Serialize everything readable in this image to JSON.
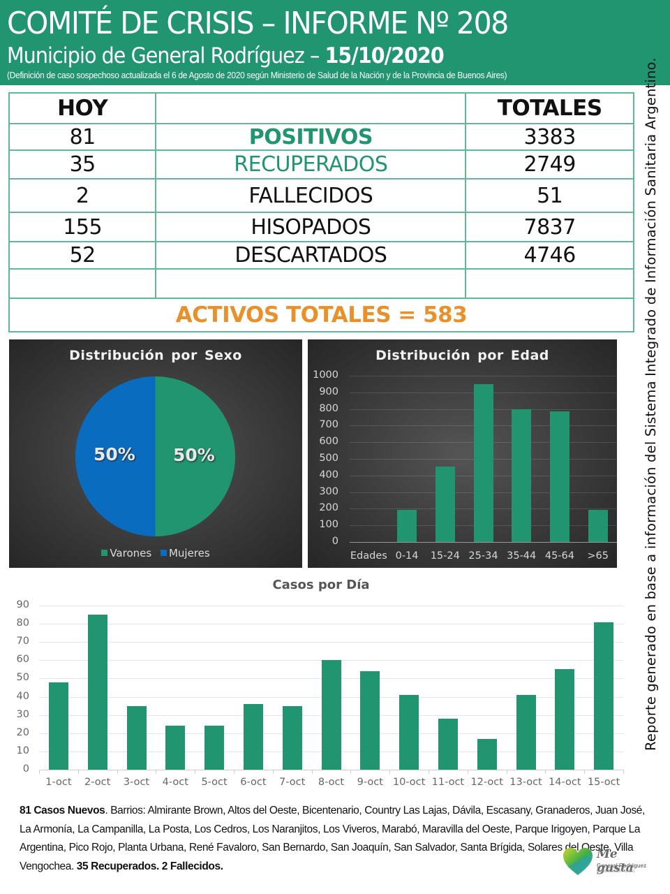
{
  "header": {
    "title": "COMITÉ DE CRISIS – INFORME Nº 208",
    "subtitle_prefix": "Municipio de General Rodríguez – ",
    "subtitle_date": "15/10/2020",
    "note": "(Definición de caso sospechoso actualizada el 6 de Agosto de 2020 según Ministerio de Salud de la Nación y de la Provincia de Buenos Aires)",
    "background_color": "#219470"
  },
  "summary": {
    "col_today": "HOY",
    "col_label": "",
    "col_total": "TOTALES",
    "rows": [
      {
        "today": "81",
        "label": "POSITIVOS",
        "total": "3383"
      },
      {
        "today": "35",
        "label": "RECUPERADOS",
        "total": "2749"
      },
      {
        "today": "2",
        "label": "FALLECIDOS",
        "total": "51"
      },
      {
        "today": "155",
        "label": "HISOPADOS",
        "total": "7837"
      },
      {
        "today": "52",
        "label": "DESCARTADOS",
        "total": "4746"
      },
      {
        "today": "",
        "label": "",
        "total": ""
      }
    ],
    "activos": "ACTIVOS TOTALES = 583",
    "activos_color": "#e8902a"
  },
  "side_note": "Reporte generado en base a información del Sistema Integrado de Información Sanitaria Argentino.",
  "chart_data": [
    {
      "type": "pie",
      "title": "Distribución por Sexo",
      "categories": [
        "Varones",
        "Mujeres"
      ],
      "values": [
        50,
        50
      ],
      "labels": [
        "50%",
        "50%"
      ],
      "colors": [
        "#219470",
        "#0a6cbf"
      ],
      "legend_position": "bottom"
    },
    {
      "type": "bar",
      "title": "Distribución por Edad",
      "categories": [
        "Edades",
        "0-14",
        "15-24",
        "25-34",
        "35-44",
        "45-64",
        ">65"
      ],
      "values": [
        0,
        195,
        455,
        950,
        800,
        785,
        195
      ],
      "yticks": [
        "0",
        "100",
        "200",
        "300",
        "400",
        "500",
        "600",
        "700",
        "800",
        "900",
        "1000"
      ],
      "ylim": [
        0,
        1000
      ],
      "grid": true,
      "color": "#219470",
      "xlabel": "",
      "ylabel": ""
    },
    {
      "type": "bar",
      "title": "Casos por Día",
      "categories": [
        "1-oct",
        "2-oct",
        "3-oct",
        "4-oct",
        "5-oct",
        "6-oct",
        "7-oct",
        "8-oct",
        "9-oct",
        "10-oct",
        "11-oct",
        "12-oct",
        "13-oct",
        "14-oct",
        "15-oct"
      ],
      "values": [
        48,
        85,
        35,
        24,
        24,
        36,
        35,
        60,
        54,
        41,
        28,
        17,
        41,
        55,
        81
      ],
      "yticks": [
        "0",
        "10",
        "20",
        "30",
        "40",
        "50",
        "60",
        "70",
        "80",
        "90"
      ],
      "ylim": [
        0,
        90
      ],
      "grid": true,
      "color": "#219470",
      "xlabel": "",
      "ylabel": ""
    }
  ],
  "footer": {
    "new_cases_bold": "81 Casos Nuevos",
    "barrios_text": ". Barrios: Almirante Brown, Altos del Oeste, Bicentenario, Country Las Lajas, Dávila, Escasany, Granaderos, Juan José, La Armonía, La Campanilla, La Posta, Los Cedros, Los Naranjitos, Los Viveros, Marabó, Maravilla del Oeste, Parque Irigoyen, Parque La Argentina, Pico Rojo, Planta Urbana, René Favaloro, San Bernardo, San Joaquín, San Salvador, Santa Brígida, Solares del Oeste, Villa Vengochea. ",
    "closing_bold": "35 Recuperados. 2 Fallecidos."
  },
  "logo": {
    "brand": "Me gusta",
    "line1": "General Rodríguez",
    "line2": "Gobierno del Pueblo"
  }
}
